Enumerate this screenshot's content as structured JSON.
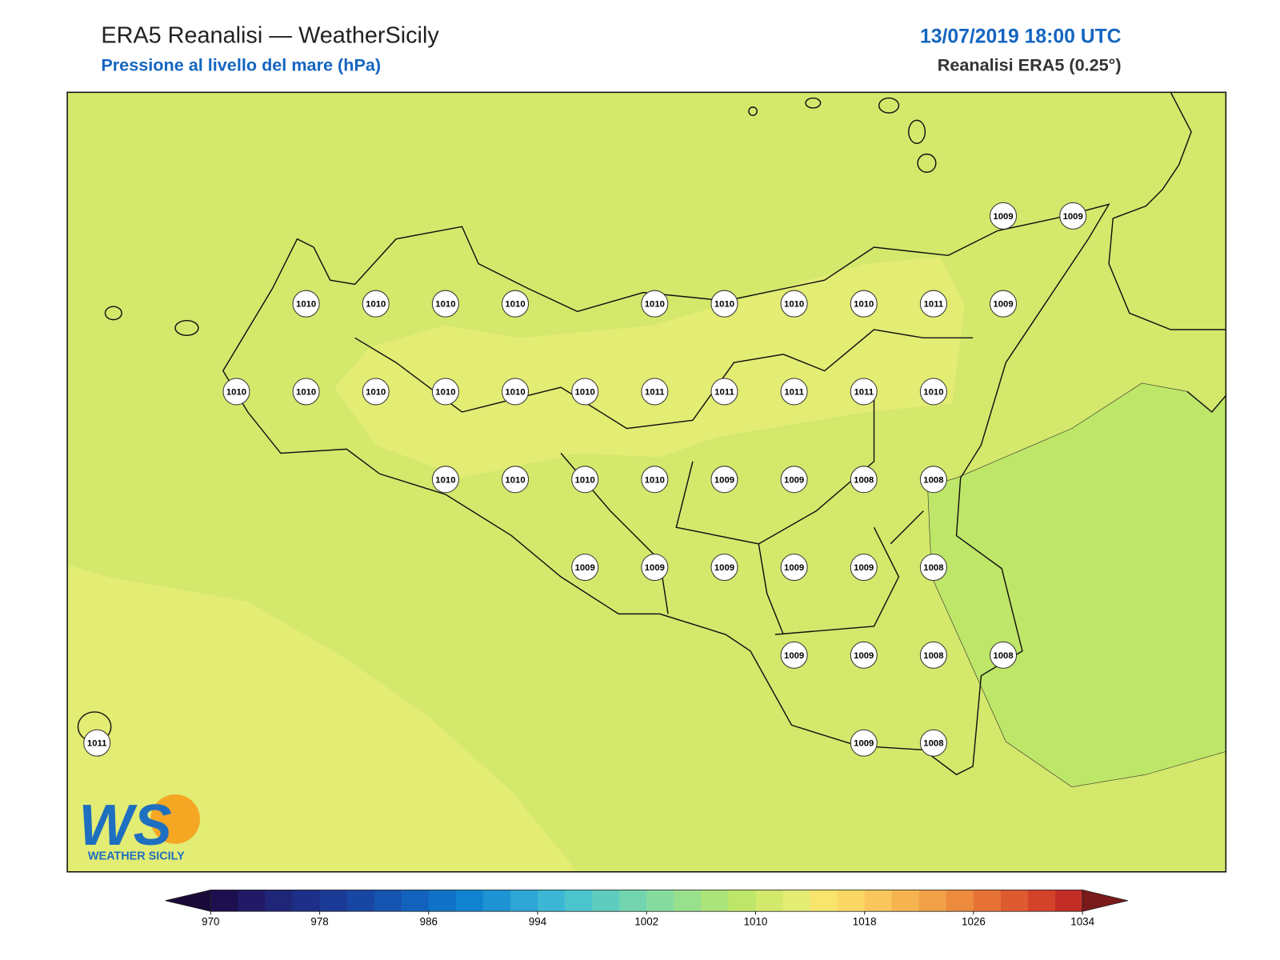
{
  "header": {
    "title": "ERA5 Reanalisi — WeatherSicily",
    "subtitle": "Pressione al livello del mare (hPa)",
    "datetime": "13/07/2019 18:00 UTC",
    "source": "Reanalisi ERA5 (0.25°)"
  },
  "map": {
    "stations": {
      "rows": [
        [
          null,
          null,
          null,
          null,
          null,
          null,
          null,
          null,
          null,
          null,
          null,
          null,
          null,
          1009,
          1009
        ],
        [
          null,
          null,
          null,
          1010,
          1010,
          1010,
          1010,
          null,
          1010,
          1010,
          1010,
          1010,
          1011,
          1009,
          null
        ],
        [
          null,
          null,
          1010,
          1010,
          1010,
          1010,
          1010,
          1010,
          1011,
          1011,
          1011,
          1011,
          1010,
          null,
          null
        ],
        [
          null,
          null,
          null,
          null,
          null,
          1010,
          1010,
          1010,
          1010,
          1009,
          1009,
          1008,
          1008,
          null,
          null
        ],
        [
          null,
          null,
          null,
          null,
          null,
          null,
          null,
          1009,
          1009,
          1009,
          1009,
          1009,
          1008,
          null,
          null
        ],
        [
          null,
          null,
          null,
          null,
          null,
          null,
          null,
          null,
          null,
          null,
          1009,
          1009,
          1008,
          1008,
          null
        ],
        [
          1011,
          null,
          null,
          null,
          null,
          null,
          null,
          null,
          null,
          null,
          null,
          1009,
          1008,
          null,
          null
        ]
      ]
    }
  },
  "logo": {
    "mark": "WS",
    "name": "WEATHER SICILY"
  },
  "colorbar": {
    "min": 970,
    "max": 1034,
    "ticks": [
      970,
      978,
      986,
      994,
      1002,
      1010,
      1018,
      1026,
      1034
    ],
    "under_color": "#1a0a3a",
    "over_color": "#7a1a1a",
    "colors": [
      "#1d0f4f",
      "#221a66",
      "#1f2577",
      "#1d2f86",
      "#1b3a95",
      "#1846a3",
      "#1553b0",
      "#1262bd",
      "#0f72c8",
      "#1182cf",
      "#1e93d3",
      "#2da5d5",
      "#3bb7d4",
      "#4cc4cb",
      "#5ecdbf",
      "#72d5b0",
      "#86dc9f",
      "#98e08c",
      "#abe479",
      "#bee668",
      "#d2e96b",
      "#e3ec73",
      "#f8e56d",
      "#fbd865",
      "#f9c75b",
      "#f6b451",
      "#f1a047",
      "#ec8a3e",
      "#e67236",
      "#de5a2f",
      "#d2432a",
      "#c22d26"
    ]
  }
}
